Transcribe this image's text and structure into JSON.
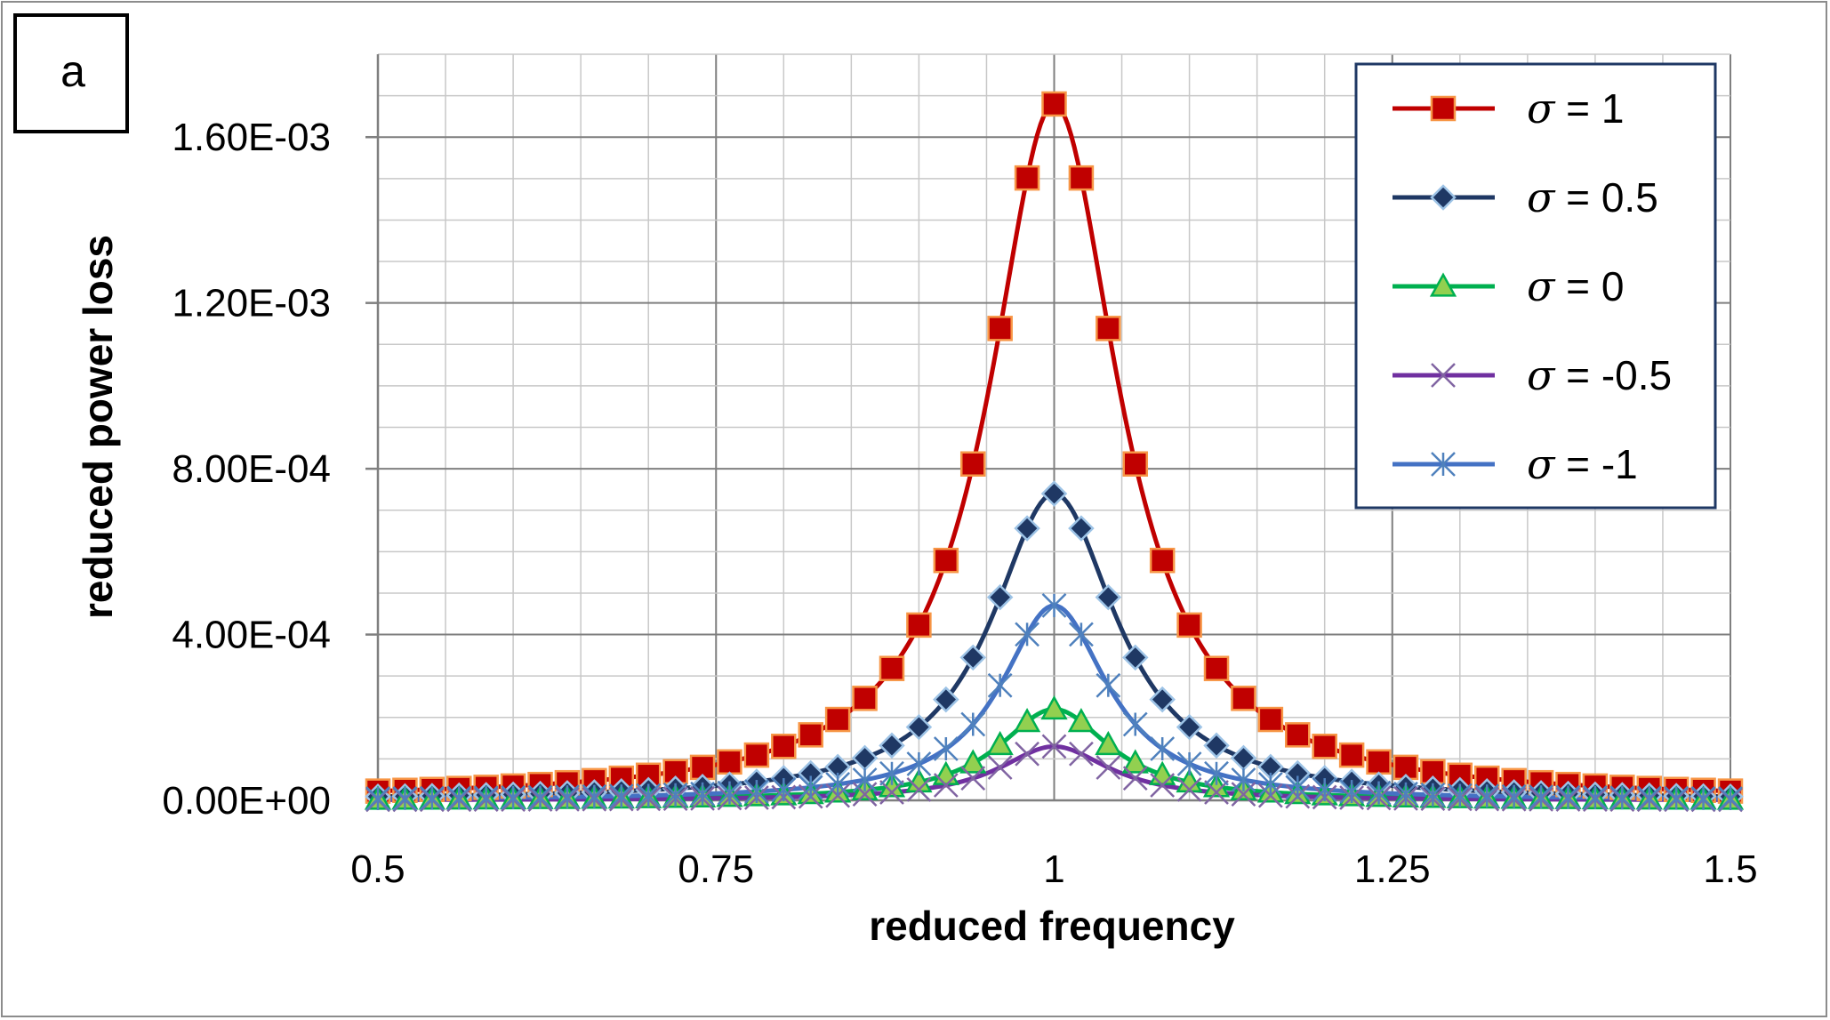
{
  "panel_label": "a",
  "chart_data": {
    "type": "line",
    "xlabel": "reduced frequency",
    "ylabel": "reduced power loss",
    "xlim": [
      0.5,
      1.5
    ],
    "ylim": [
      0,
      0.0018
    ],
    "x_ticks": [
      0.5,
      0.75,
      1,
      1.25,
      1.5
    ],
    "x_tick_labels": [
      "0.5",
      "0.75",
      "1",
      "1.25",
      "1.5"
    ],
    "y_ticks": [
      0,
      0.0004,
      0.0008,
      0.0012,
      0.0016
    ],
    "y_tick_labels": [
      "0.00E+00",
      "4.00E-04",
      "8.00E-04",
      "1.20E-03",
      "1.60E-03"
    ],
    "grid": true,
    "legend_position": "top-right",
    "series": [
      {
        "name": "σ = 1",
        "sigma_symbol": "σ",
        "sigma_rest": " = 1",
        "color": "#c00000",
        "marker": "square",
        "marker_fill": "#c00000",
        "marker_stroke": "#f79646",
        "peak": 0.00168,
        "halfwidth": 0.058
      },
      {
        "name": "σ = 0.5",
        "sigma_symbol": "σ",
        "sigma_rest": " = 0.5",
        "color": "#1f3864",
        "marker": "diamond",
        "marker_fill": "#1f3864",
        "marker_stroke": "#9dc3e6",
        "peak": 0.00074,
        "halfwidth": 0.056
      },
      {
        "name": "σ = 0",
        "sigma_symbol": "σ",
        "sigma_rest": " = 0",
        "color": "#00b050",
        "marker": "triangle",
        "marker_fill": "#92d050",
        "marker_stroke": "#00b050",
        "peak": 0.00022,
        "halfwidth": 0.05
      },
      {
        "name": "σ = -0.5",
        "sigma_symbol": "σ",
        "sigma_rest": " = -0.5",
        "color": "#7030a0",
        "marker": "x",
        "marker_fill": "none",
        "marker_stroke": "#8064a2",
        "peak": 0.00013,
        "halfwidth": 0.05
      },
      {
        "name": "σ = -1",
        "sigma_symbol": "σ",
        "sigma_rest": " = -1",
        "color": "#4472c4",
        "marker": "star",
        "marker_fill": "none",
        "marker_stroke": "#4f81bd",
        "peak": 0.00047,
        "halfwidth": 0.048
      }
    ]
  }
}
